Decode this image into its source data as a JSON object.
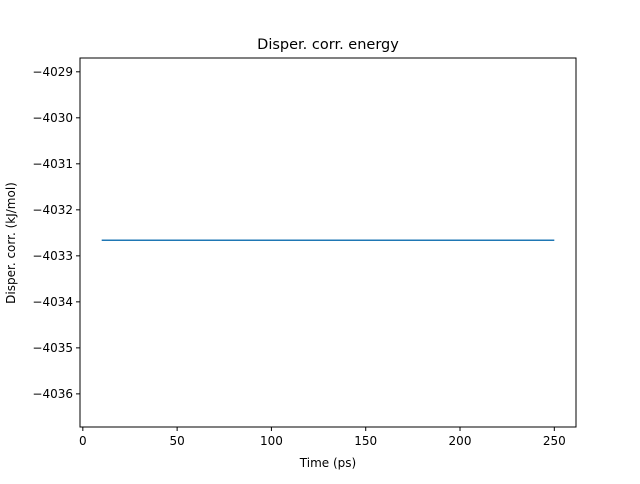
{
  "chart_data": {
    "type": "line",
    "title": "Disper. corr. energy",
    "xlabel": "Time (ps)",
    "ylabel": "Disper. corr. (kJ/mol)",
    "xlim": [
      -1.5,
      261.5
    ],
    "ylim": [
      -4036.72,
      -4028.7
    ],
    "xticks": [
      0,
      50,
      100,
      150,
      200,
      250
    ],
    "yticks": [
      -4036,
      -4035,
      -4034,
      -4033,
      -4032,
      -4031,
      -4030,
      -4029
    ],
    "xtick_labels": [
      "0",
      "50",
      "100",
      "150",
      "200",
      "250"
    ],
    "ytick_labels": [
      "−4036",
      "−4035",
      "−4034",
      "−4033",
      "−4032",
      "−4031",
      "−4030",
      "−4029"
    ],
    "grid": false,
    "series": [
      {
        "color": "#1f77b4",
        "x": [
          10,
          250
        ],
        "y": [
          -4032.66,
          -4032.66
        ]
      }
    ]
  }
}
